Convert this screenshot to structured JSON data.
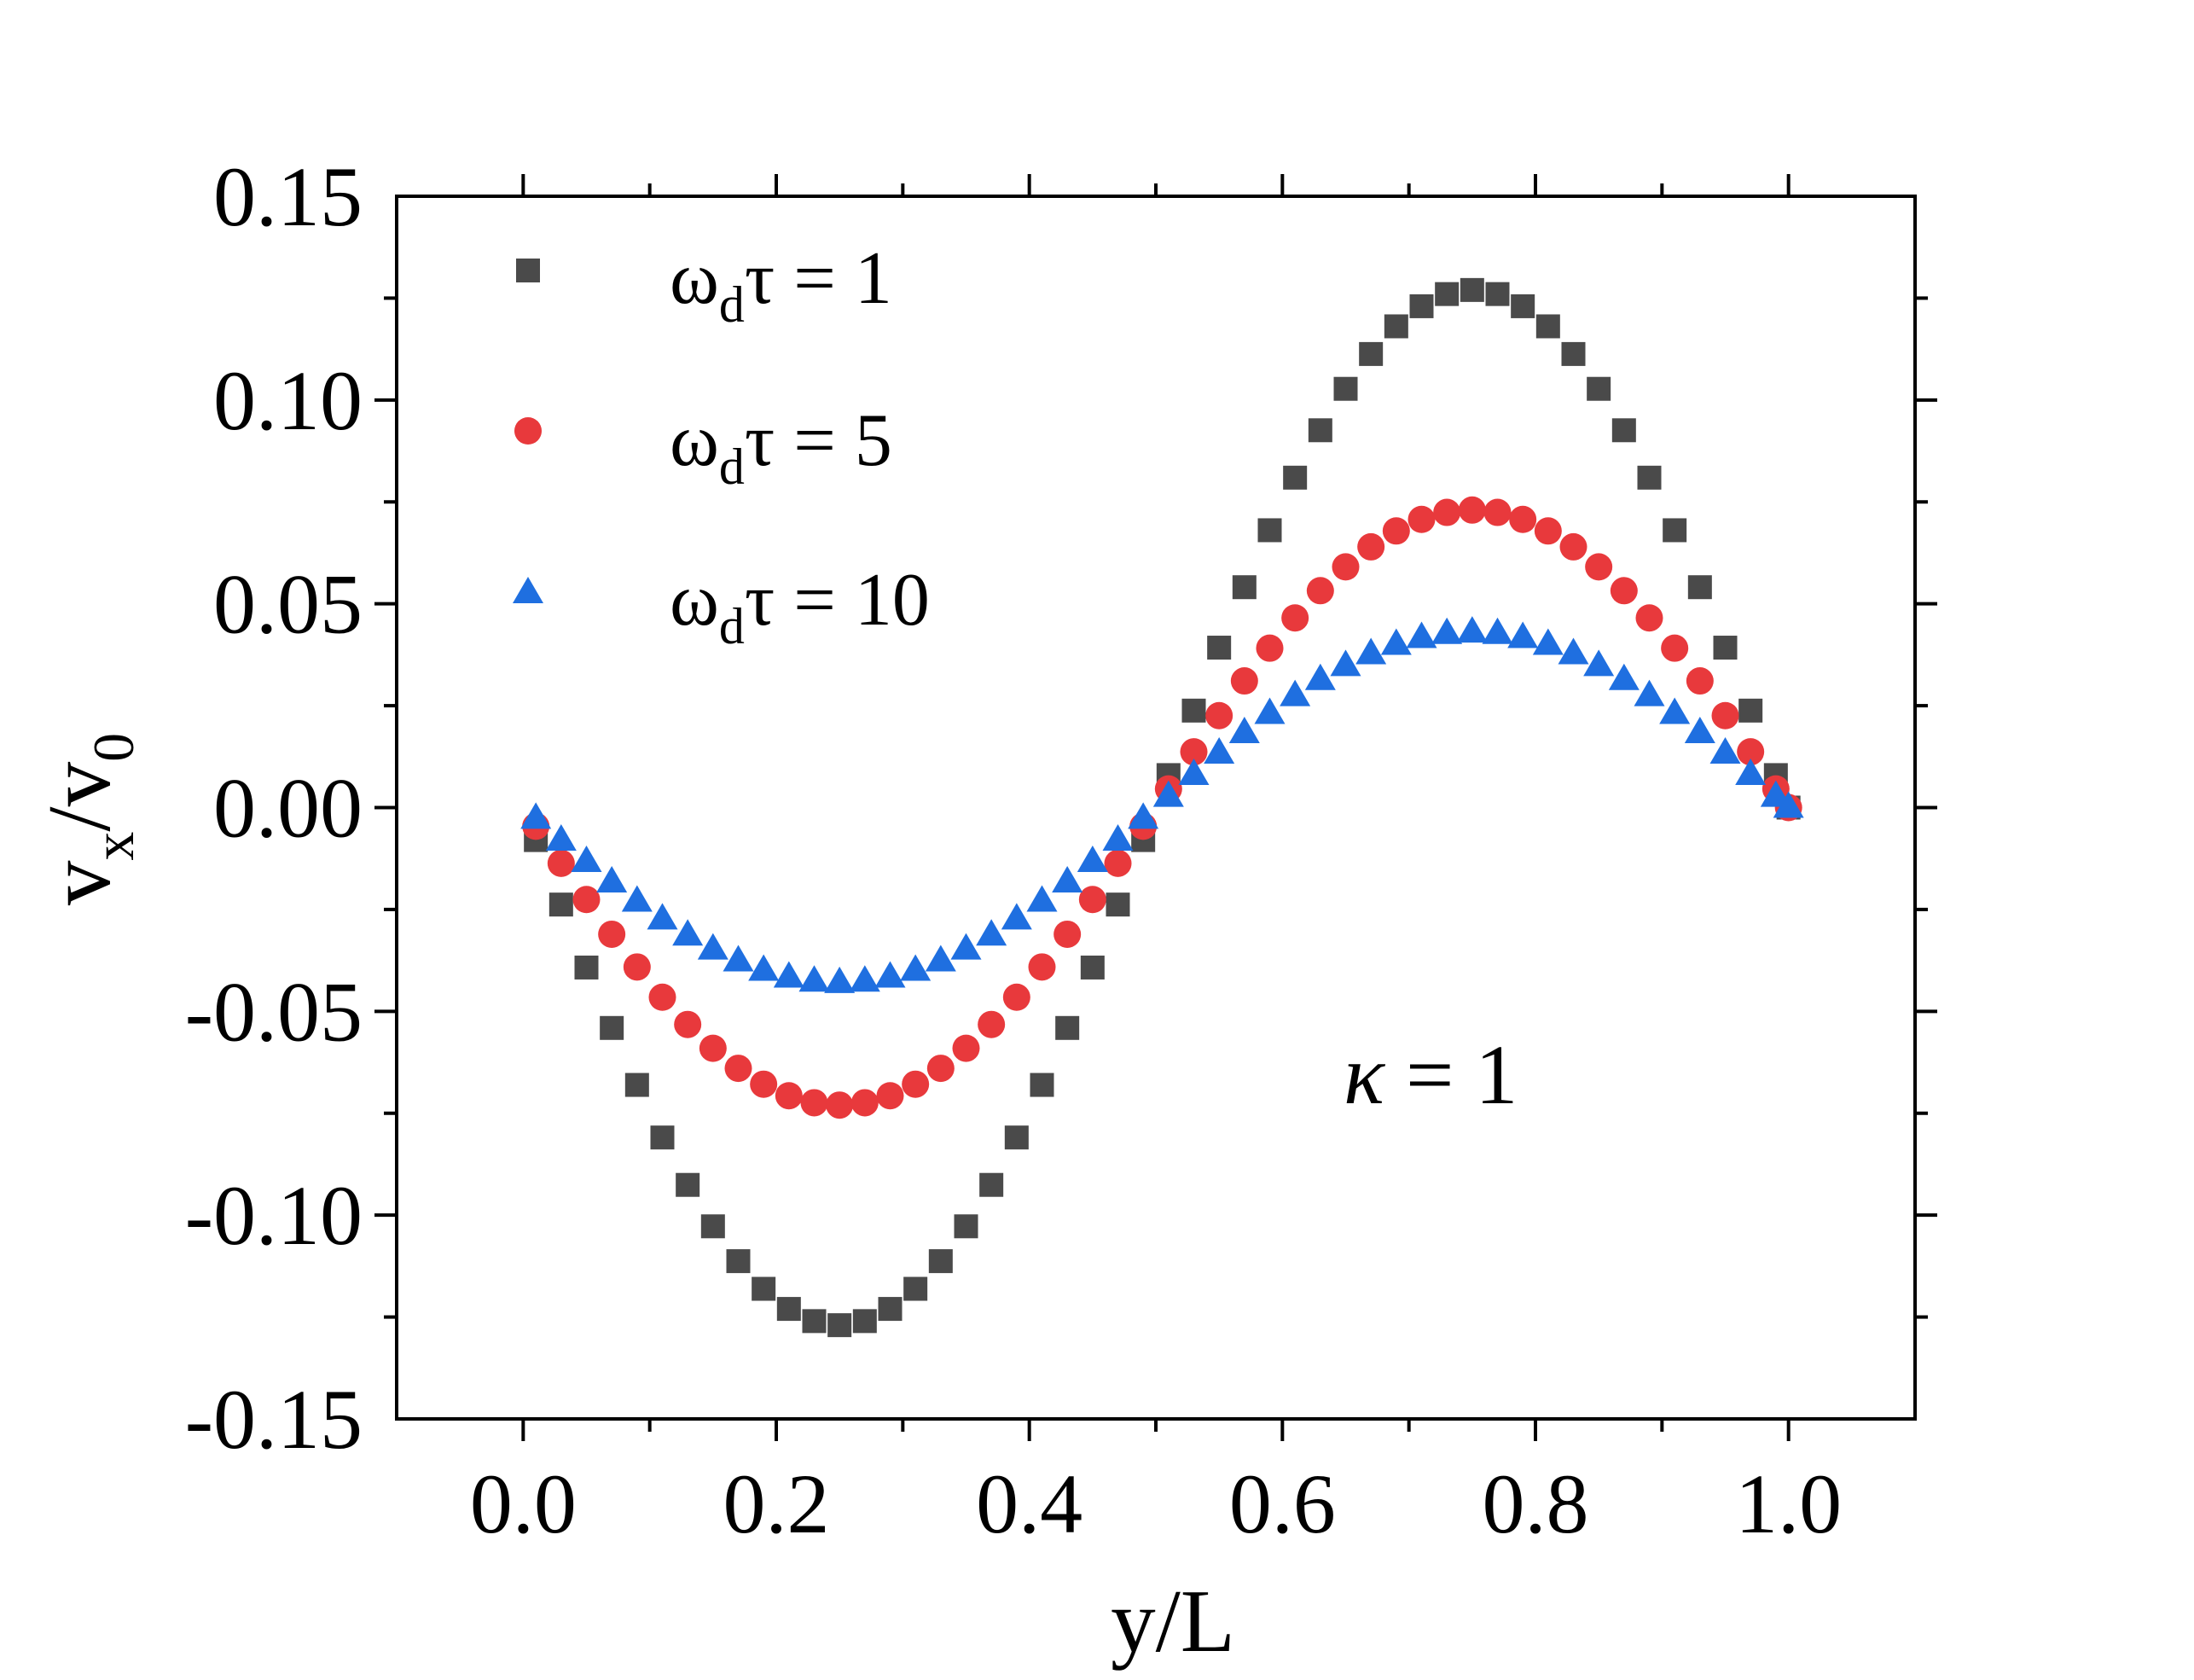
{
  "chart_data": {
    "type": "scatter",
    "title": "",
    "xlabel": "y/L",
    "ylabel": {
      "base": "v",
      "sub1": "x",
      "mid": "/v",
      "sub2": "0"
    },
    "xlim": [
      -0.1,
      1.1
    ],
    "ylim": [
      -0.15,
      0.15
    ],
    "x_ticks": [
      0.0,
      0.2,
      0.4,
      0.6,
      0.8,
      1.0
    ],
    "x_tick_labels": [
      "0.0",
      "0.2",
      "0.4",
      "0.6",
      "0.8",
      "1.0"
    ],
    "y_ticks": [
      -0.15,
      -0.1,
      -0.05,
      0.0,
      0.05,
      0.1,
      0.15
    ],
    "y_tick_labels": [
      "-0.15",
      "-0.10",
      "-0.05",
      "0.00",
      "0.05",
      "0.10",
      "0.15"
    ],
    "grid": false,
    "legend_position": "top-left",
    "annotation": {
      "symbol": "κ",
      "text": " = 1"
    },
    "series": [
      {
        "name": "ω_dτ = 1",
        "legend": {
          "base": "ω",
          "sub": "d",
          "rest": "τ = 1"
        },
        "marker": "square",
        "color": "#4a4a4a",
        "amplitude": 0.127
      },
      {
        "name": "ω_dτ = 5",
        "legend": {
          "base": "ω",
          "sub": "d",
          "rest": "τ = 5"
        },
        "marker": "circle",
        "color": "#e8393c",
        "amplitude": 0.073
      },
      {
        "name": "ω_dτ = 10",
        "legend": {
          "base": "ω",
          "sub": "d",
          "rest": "τ = 10"
        },
        "marker": "triangle",
        "color": "#1f6fe0",
        "amplitude": 0.043
      }
    ],
    "x_values": [
      0.01,
      0.03,
      0.05,
      0.07,
      0.09,
      0.11,
      0.13,
      0.15,
      0.17,
      0.19,
      0.21,
      0.23,
      0.25,
      0.27,
      0.29,
      0.31,
      0.33,
      0.35,
      0.37,
      0.39,
      0.41,
      0.43,
      0.45,
      0.47,
      0.49,
      0.51,
      0.53,
      0.55,
      0.57,
      0.59,
      0.61,
      0.63,
      0.65,
      0.67,
      0.69,
      0.71,
      0.73,
      0.75,
      0.77,
      0.79,
      0.81,
      0.83,
      0.85,
      0.87,
      0.89,
      0.91,
      0.93,
      0.95,
      0.97,
      0.99,
      1.0
    ]
  }
}
